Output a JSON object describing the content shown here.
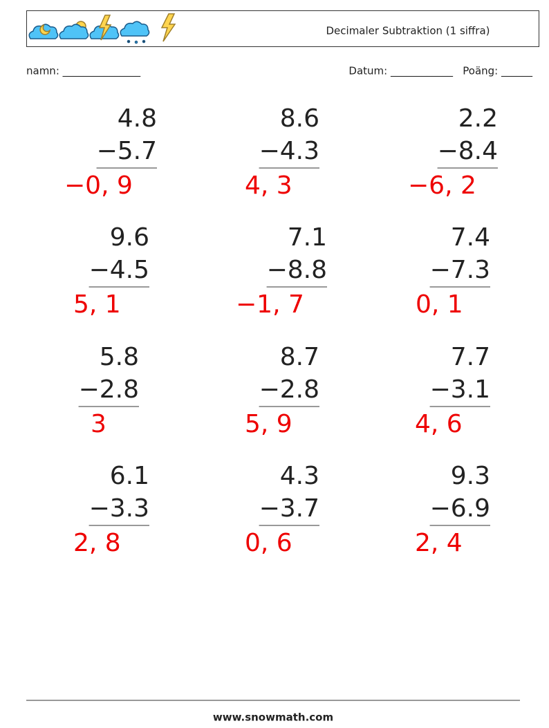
{
  "header": {
    "title": "Decimaler Subtraktion (1 siffra)"
  },
  "fields": {
    "name": "namn: _______________",
    "date": "Datum: ____________",
    "score": "Poäng: ______"
  },
  "problems": [
    {
      "top": "4.8",
      "bottom": "−5.7",
      "answer": "−0, 9"
    },
    {
      "top": "8.6",
      "bottom": "−4.3",
      "answer": "4, 3"
    },
    {
      "top": "2.2",
      "bottom": "−8.4",
      "answer": "−6, 2"
    },
    {
      "top": "9.6",
      "bottom": "−4.5",
      "answer": "5, 1"
    },
    {
      "top": "7.1",
      "bottom": "−8.8",
      "answer": "−1, 7"
    },
    {
      "top": "7.4",
      "bottom": "−7.3",
      "answer": "0, 1"
    },
    {
      "top": "5.8",
      "bottom": "−2.8",
      "answer": "3"
    },
    {
      "top": "8.7",
      "bottom": "−2.8",
      "answer": "5, 9"
    },
    {
      "top": "7.7",
      "bottom": "−3.1",
      "answer": "4, 6"
    },
    {
      "top": "6.1",
      "bottom": "−3.3",
      "answer": "2, 8"
    },
    {
      "top": "4.3",
      "bottom": "−3.7",
      "answer": "0, 6"
    },
    {
      "top": "9.3",
      "bottom": "−6.9",
      "answer": "2, 4"
    }
  ],
  "footer": {
    "site": "www.snowmath.com"
  }
}
